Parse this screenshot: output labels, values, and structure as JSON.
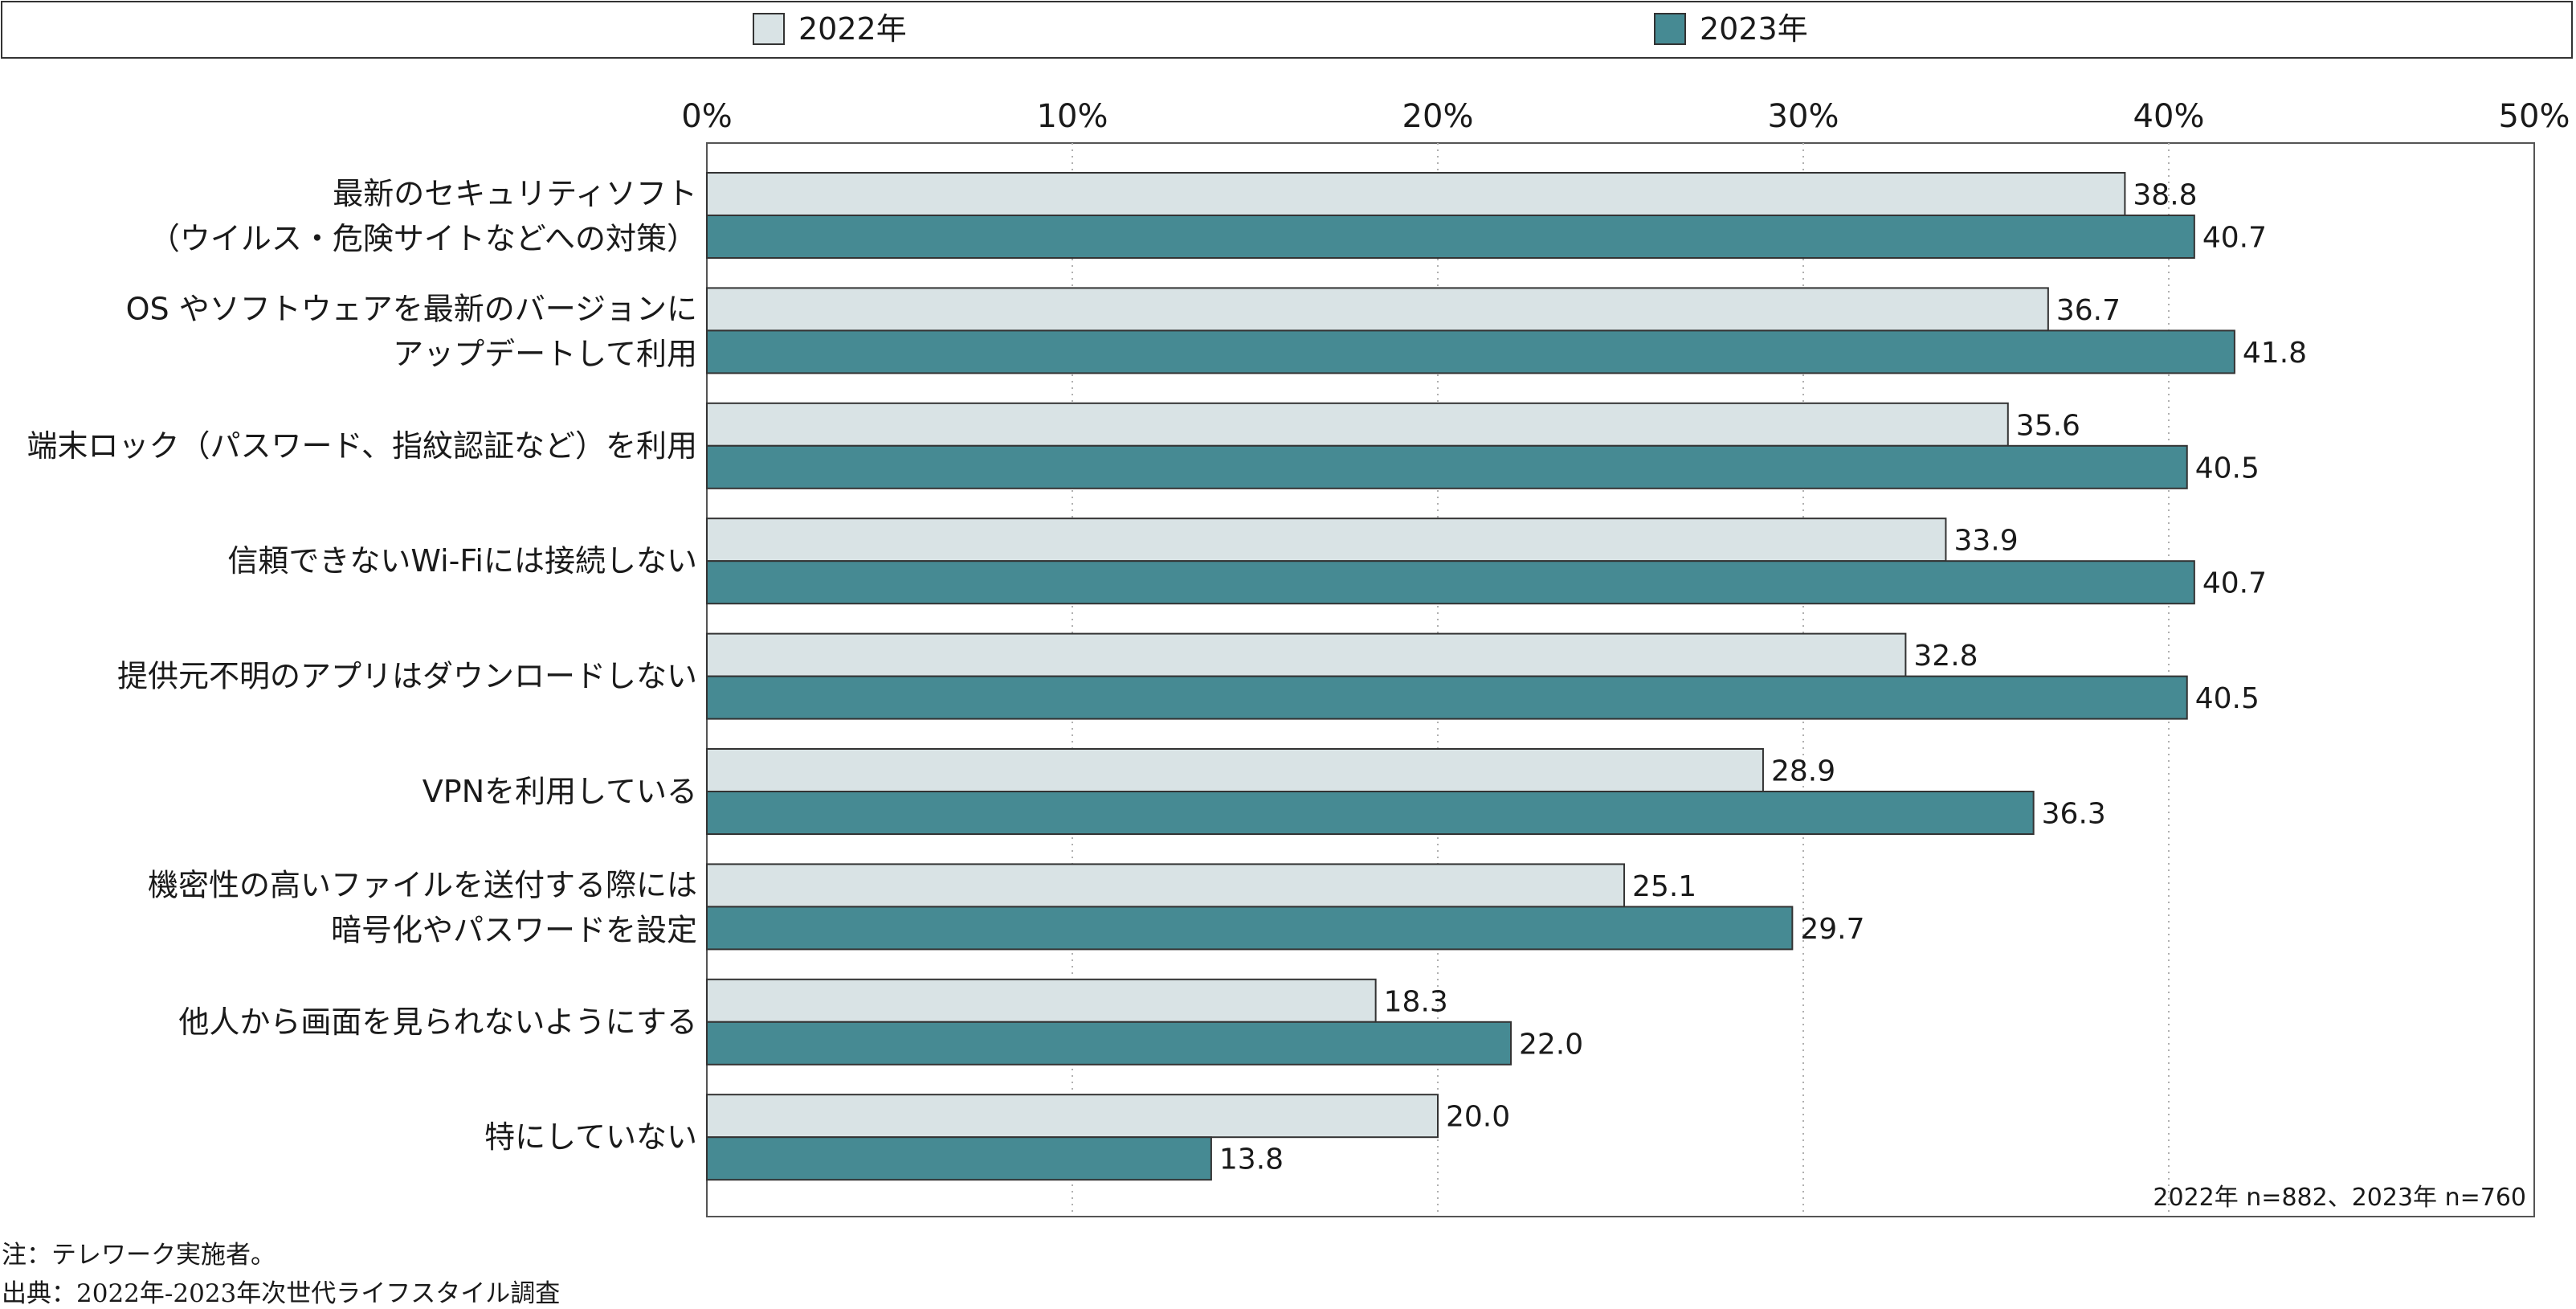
{
  "chart_data": {
    "type": "bar",
    "orientation": "horizontal",
    "categories": [
      [
        "最新のセキュリティソフト",
        "（ウイルス・危険サイトなどへの対策）"
      ],
      [
        "OS やソフトウェアを最新のバージョンに",
        "アップデートして利用"
      ],
      [
        "端末ロック（パスワード、指紋認証など）を利用"
      ],
      [
        "信頼できないWi-Fiには接続しない"
      ],
      [
        "提供元不明のアプリはダウンロードしない"
      ],
      [
        "VPNを利用している"
      ],
      [
        "機密性の高いファイルを送付する際には",
        "暗号化やパスワードを設定"
      ],
      [
        "他人から画面を見られないようにする"
      ],
      [
        "特にしていない"
      ]
    ],
    "series": [
      {
        "name": "2022年",
        "color": "#d9e3e5",
        "values": [
          38.8,
          36.7,
          35.6,
          33.9,
          32.8,
          28.9,
          25.1,
          18.3,
          20.0
        ],
        "labels": [
          "38.8",
          "36.7",
          "35.6",
          "33.9",
          "32.8",
          "28.9",
          "25.1",
          "18.3",
          "20.0"
        ]
      },
      {
        "name": "2023年",
        "color": "#468a93",
        "values": [
          40.7,
          41.8,
          40.5,
          40.7,
          40.5,
          36.3,
          29.7,
          22.0,
          13.8
        ],
        "labels": [
          "40.7",
          "41.8",
          "40.5",
          "40.7",
          "40.5",
          "36.3",
          "29.7",
          "22.0",
          "13.8"
        ]
      }
    ],
    "xlim": [
      0,
      50
    ],
    "x_ticks": [
      "0%",
      "10%",
      "20%",
      "30%",
      "40%",
      "50%"
    ],
    "grid": "vertical dotted",
    "legend_position": "top",
    "sample_note": "2022年 n=882、2023年 n=760"
  },
  "footnotes": {
    "note": "注：テレワーク実施者。",
    "source": "出典：2022年-2023年次世代ライフスタイル調査"
  }
}
